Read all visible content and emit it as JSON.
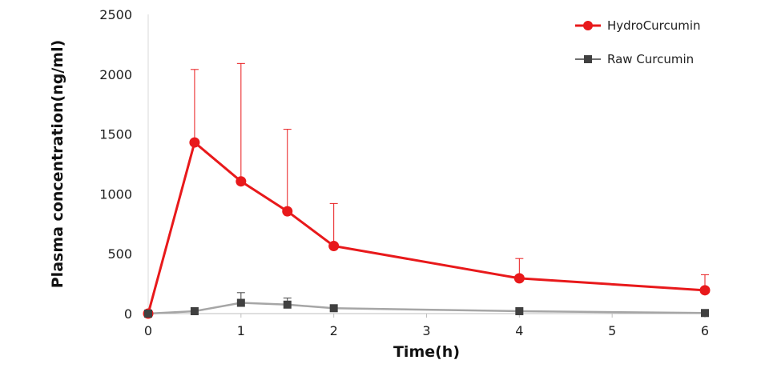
{
  "chart_data": {
    "type": "line",
    "xlabel": "Time(h)",
    "ylabel": "Plasma concentration(ng/ml)",
    "xlim": [
      0,
      6
    ],
    "ylim": [
      0,
      2500
    ],
    "xticks": [
      0,
      1,
      2,
      3,
      4,
      5,
      6
    ],
    "yticks": [
      0,
      500,
      1000,
      1500,
      2000,
      2500
    ],
    "grid": false,
    "legend": "top-right",
    "series": [
      {
        "name": "HydroCurcumin",
        "color": "#e8191b",
        "marker": "circle",
        "x": [
          0,
          0.5,
          1,
          1.5,
          2,
          4,
          6
        ],
        "y": [
          0,
          1430,
          1105,
          855,
          565,
          295,
          195
        ],
        "err_up": [
          0,
          610,
          985,
          685,
          355,
          165,
          130
        ]
      },
      {
        "name": "Raw Curcumin",
        "color": "#a6a6a6",
        "marker_color": "#404040",
        "marker": "square",
        "x": [
          0,
          0.5,
          1,
          1.5,
          2,
          4,
          6
        ],
        "y": [
          0,
          20,
          90,
          75,
          45,
          20,
          5
        ],
        "err_up": [
          0,
          0,
          85,
          55,
          0,
          0,
          0
        ]
      }
    ]
  }
}
